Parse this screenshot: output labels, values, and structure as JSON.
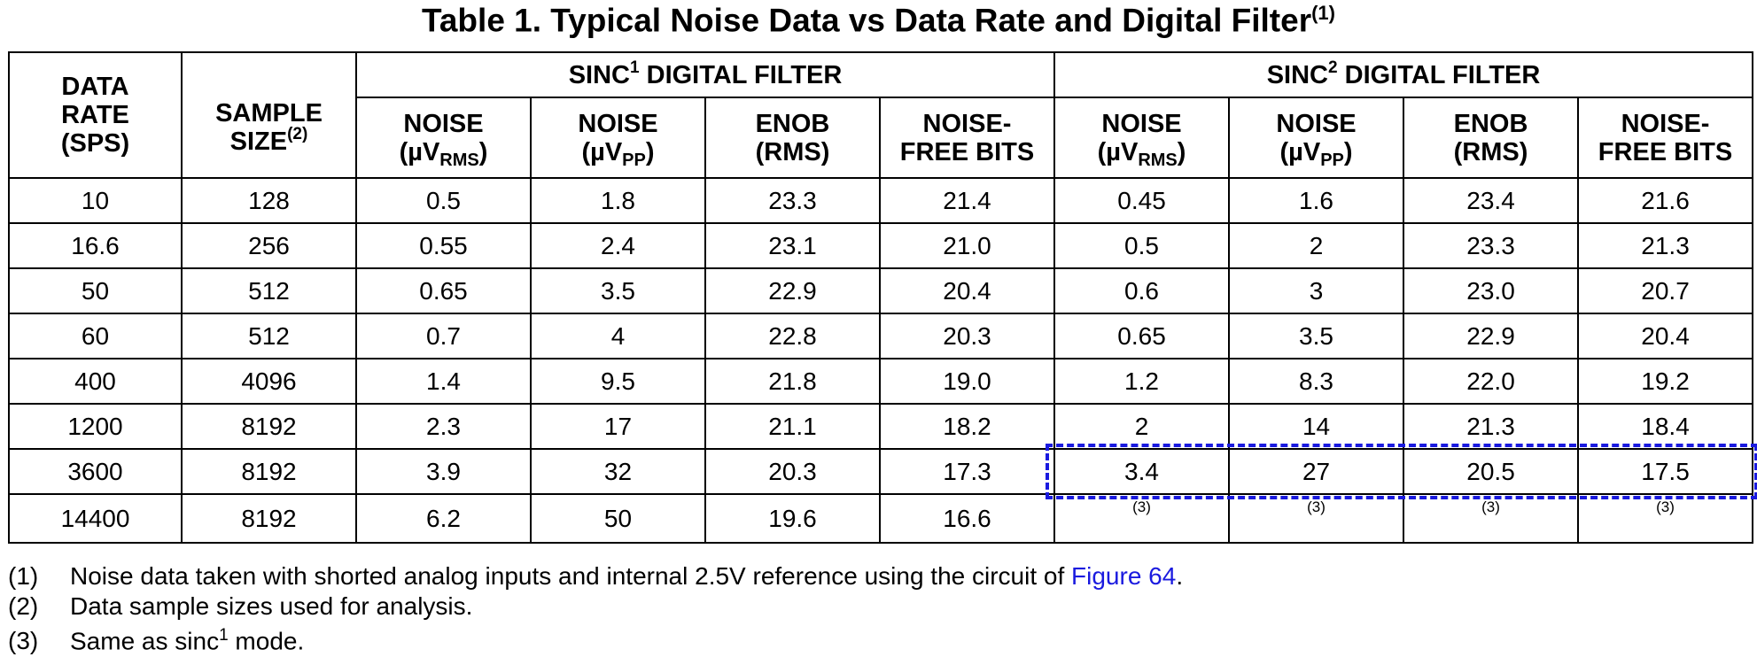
{
  "title": {
    "text": "Table 1. Typical Noise Data vs Data Rate and Digital Filter",
    "note": "(1)"
  },
  "table": {
    "header": {
      "data_rate": [
        "DATA",
        "RATE",
        "(SPS)"
      ],
      "sample_size": {
        "lines": [
          "SAMPLE",
          "SIZE"
        ],
        "note": "(2)"
      },
      "groups": [
        {
          "prefix": "SINC",
          "sup": "1",
          "suffix": " DIGITAL FILTER",
          "columns": [
            {
              "line1": "NOISE",
              "line2": "(µV",
              "sub": "RMS",
              "end": ")"
            },
            {
              "line1": "NOISE",
              "line2": "(µV",
              "sub": "PP",
              "end": ")"
            },
            {
              "line1": "ENOB",
              "line2": "(RMS)"
            },
            {
              "line1": "NOISE-",
              "line2": "FREE BITS"
            }
          ]
        },
        {
          "prefix": "SINC",
          "sup": "2",
          "suffix": " DIGITAL FILTER",
          "columns": [
            {
              "line1": "NOISE",
              "line2": "(µV",
              "sub": "RMS",
              "end": ")"
            },
            {
              "line1": "NOISE",
              "line2": "(µV",
              "sub": "PP",
              "end": ")"
            },
            {
              "line1": "ENOB",
              "line2": "(RMS)"
            },
            {
              "line1": "NOISE-",
              "line2": "FREE BITS"
            }
          ]
        }
      ]
    },
    "rows": [
      [
        "10",
        "128",
        "0.5",
        "1.8",
        "23.3",
        "21.4",
        "0.45",
        "1.6",
        "23.4",
        "21.6"
      ],
      [
        "16.6",
        "256",
        "0.55",
        "2.4",
        "23.1",
        "21.0",
        "0.5",
        "2",
        "23.3",
        "21.3"
      ],
      [
        "50",
        "512",
        "0.65",
        "3.5",
        "22.9",
        "20.4",
        "0.6",
        "3",
        "23.0",
        "20.7"
      ],
      [
        "60",
        "512",
        "0.7",
        "4",
        "22.8",
        "20.3",
        "0.65",
        "3.5",
        "22.9",
        "20.4"
      ],
      [
        "400",
        "4096",
        "1.4",
        "9.5",
        "21.8",
        "19.0",
        "1.2",
        "8.3",
        "22.0",
        "19.2"
      ],
      [
        "1200",
        "8192",
        "2.3",
        "17",
        "21.1",
        "18.2",
        "2",
        "14",
        "21.3",
        "18.4"
      ],
      [
        "3600",
        "8192",
        "3.9",
        "32",
        "20.3",
        "17.3",
        "3.4",
        "27",
        "20.5",
        "17.5"
      ],
      [
        "14400",
        "8192",
        "6.2",
        "50",
        "19.6",
        "16.6",
        "(3)",
        "(3)",
        "(3)",
        "(3)"
      ]
    ]
  },
  "footnotes": [
    {
      "mark": "(1)",
      "text": "Noise data taken with shorted analog inputs and internal 2.5V reference using the circuit of ",
      "link": "Figure 64",
      "end": "."
    },
    {
      "mark": "(2)",
      "text": "Data sample sizes used for analysis."
    },
    {
      "mark": "(3)",
      "text": "Same as sinc",
      "sup": "1",
      "end": " mode."
    }
  ]
}
